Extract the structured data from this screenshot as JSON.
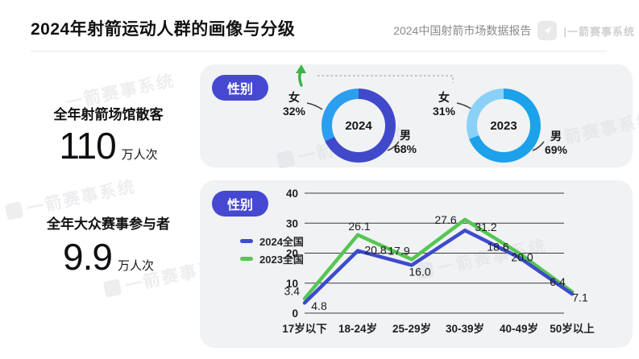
{
  "header": {
    "title": "2024年射箭运动人群的画像与分级",
    "subtitle": "2024中国射箭市场数据报告",
    "brand_prefix": "|",
    "brand": "一箭赛事系统"
  },
  "stats": [
    {
      "label": "全年射箭场馆散客",
      "value": "110",
      "unit": "万人次"
    },
    {
      "label": "全年大众赛事参与者",
      "value": "9.9",
      "unit": "万人次"
    }
  ],
  "gender_panel": {
    "badge": "性别",
    "donuts": [
      {
        "year": "2024",
        "left": {
          "name": "女",
          "pct": "32%"
        },
        "right": {
          "name": "男",
          "pct": "68%"
        }
      },
      {
        "year": "2023",
        "left": {
          "name": "女",
          "pct": "31%"
        },
        "right": {
          "name": "男",
          "pct": "69%"
        }
      }
    ]
  },
  "age_panel": {
    "badge": "性别"
  },
  "watermark": {
    "text": "一箭赛事系统"
  },
  "colors": {
    "badge": "#4549d2",
    "male_2024": "#4149cb",
    "female_2024": "#2b9ef0",
    "male_2023": "#1ba2ea",
    "female_2023": "#8bd1f7",
    "line_2024": "#3d4bcc",
    "line_2023": "#55c653",
    "arrow_green": "#3cb44b",
    "panel_bg": "#f1f2f4"
  },
  "chart_data": [
    {
      "type": "pie",
      "title": "2024",
      "labels": [
        "男",
        "女"
      ],
      "values": [
        68,
        32
      ],
      "unit": "%",
      "colors": [
        "#4149cb",
        "#2b9ef0"
      ]
    },
    {
      "type": "pie",
      "title": "2023",
      "labels": [
        "男",
        "女"
      ],
      "values": [
        69,
        31
      ],
      "unit": "%",
      "colors": [
        "#1ba2ea",
        "#8bd1f7"
      ]
    },
    {
      "type": "line",
      "title": "",
      "categories": [
        "17岁以下",
        "18-24岁",
        "25-29岁",
        "30-39岁",
        "40-49岁",
        "50岁以上"
      ],
      "series": [
        {
          "name": "2024全国",
          "color": "#3d4bcc",
          "values": [
            3.4,
            20.8,
            16.0,
            27.6,
            18.6,
            6.4
          ]
        },
        {
          "name": "2023全国",
          "color": "#55c653",
          "values": [
            4.8,
            26.1,
            17.9,
            31.2,
            20.0,
            7.1
          ]
        }
      ],
      "ylim": [
        0,
        40
      ],
      "yticks": [
        0,
        10,
        20,
        30,
        40
      ],
      "grid": true,
      "legend_position": "left",
      "data_labels": true
    }
  ]
}
